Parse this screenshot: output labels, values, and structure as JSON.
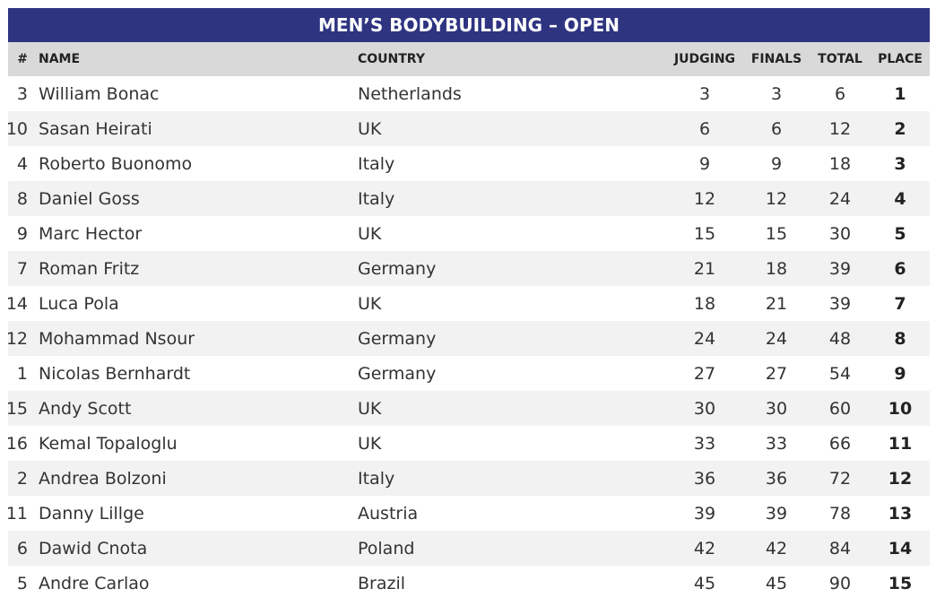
{
  "title": "MEN’S BODYBUILDING – OPEN",
  "table": {
    "columns": [
      "#",
      "NAME",
      "COUNTRY",
      "JUDGING",
      "FINALS",
      "TOTAL",
      "PLACE"
    ],
    "rows": [
      [
        3,
        "William Bonac",
        "Netherlands",
        3,
        3,
        6,
        1
      ],
      [
        10,
        "Sasan Heirati",
        "UK",
        6,
        6,
        12,
        2
      ],
      [
        4,
        "Roberto Buonomo",
        "Italy",
        9,
        9,
        18,
        3
      ],
      [
        8,
        "Daniel Goss",
        "Italy",
        12,
        12,
        24,
        4
      ],
      [
        9,
        "Marc Hector",
        "UK",
        15,
        15,
        30,
        5
      ],
      [
        7,
        "Roman Fritz",
        "Germany",
        21,
        18,
        39,
        6
      ],
      [
        14,
        "Luca Pola",
        "UK",
        18,
        21,
        39,
        7
      ],
      [
        12,
        "Mohammad Nsour",
        "Germany",
        24,
        24,
        48,
        8
      ],
      [
        1,
        "Nicolas Bernhardt",
        "Germany",
        27,
        27,
        54,
        9
      ],
      [
        15,
        "Andy Scott",
        "UK",
        30,
        30,
        60,
        10
      ],
      [
        16,
        "Kemal Topaloglu",
        "UK",
        33,
        33,
        66,
        11
      ],
      [
        2,
        "Andrea Bolzoni",
        "Italy",
        36,
        36,
        72,
        12
      ],
      [
        11,
        "Danny Lillge",
        "Austria",
        39,
        39,
        78,
        13
      ],
      [
        6,
        "Dawid Cnota",
        "Poland",
        42,
        42,
        84,
        14
      ],
      [
        5,
        "Andre Carlao",
        "Brazil",
        45,
        45,
        90,
        15
      ]
    ]
  }
}
